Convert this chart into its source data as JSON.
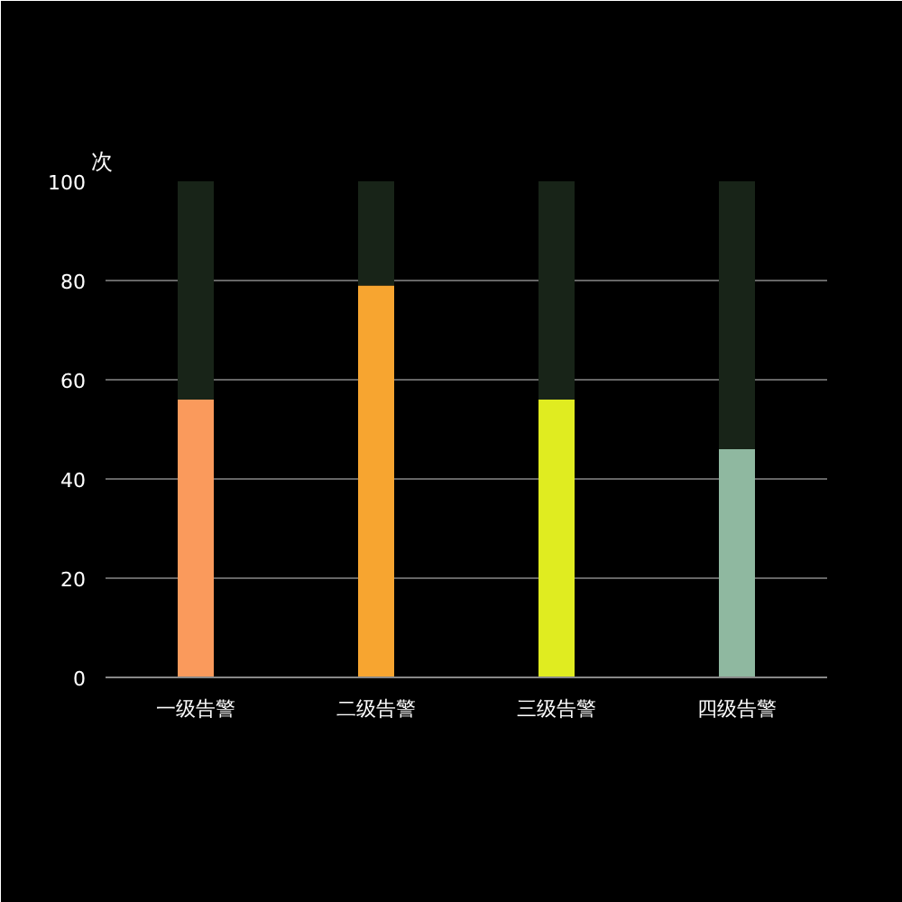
{
  "chart_data": {
    "type": "bar",
    "stacked": true,
    "ylabel": "次",
    "categories": [
      "一级告警",
      "二级告警",
      "三级告警",
      "四级告警"
    ],
    "series": [
      {
        "colors": [
          "#fa9a5c",
          "#f7a530",
          "#e0ec20",
          "#8fb8a0"
        ],
        "values": [
          56,
          79,
          56,
          46
        ]
      },
      {
        "color": "#182418",
        "values": [
          44,
          21,
          44,
          54
        ]
      }
    ],
    "ylim": [
      0,
      100
    ],
    "yticks": [
      0,
      20,
      40,
      60,
      80,
      100
    ],
    "grid": "y"
  }
}
